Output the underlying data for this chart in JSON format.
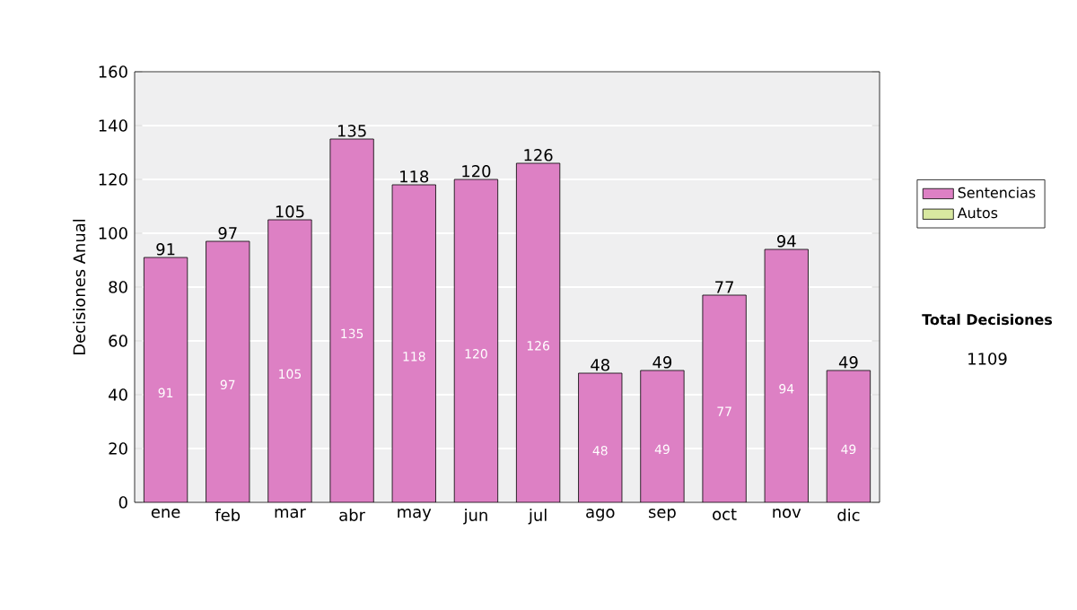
{
  "chart_data": {
    "type": "bar",
    "stacked": true,
    "ylabel": "Decisiones Anual",
    "categories": [
      "ene",
      "feb",
      "mar",
      "abr",
      "may",
      "jun",
      "jul",
      "ago",
      "sep",
      "oct",
      "nov",
      "dic"
    ],
    "series": [
      {
        "name": "Sentencias",
        "color": "#dd80c4",
        "values": [
          91,
          97,
          105,
          135,
          118,
          120,
          126,
          48,
          49,
          77,
          94,
          49
        ],
        "value_labels": [
          "91",
          "97",
          "105",
          "135",
          "118",
          "120",
          "126",
          "48",
          "49",
          "77",
          "94",
          "49"
        ]
      },
      {
        "name": "Autos",
        "color": "#d8e8a0",
        "values": [
          0,
          0,
          0,
          0,
          0,
          0,
          0,
          0,
          0,
          0,
          0,
          0
        ]
      }
    ],
    "totals": [
      "91",
      "97",
      "105",
      "135",
      "118",
      "120",
      "126",
      "48",
      "49",
      "77",
      "94",
      "49"
    ],
    "ylim": [
      0,
      160
    ],
    "yticks": [
      0,
      20,
      40,
      60,
      80,
      100,
      120,
      140,
      160
    ],
    "grid": "y",
    "legend": "right",
    "annotations": [
      "Total Decisiones",
      "1109"
    ]
  }
}
